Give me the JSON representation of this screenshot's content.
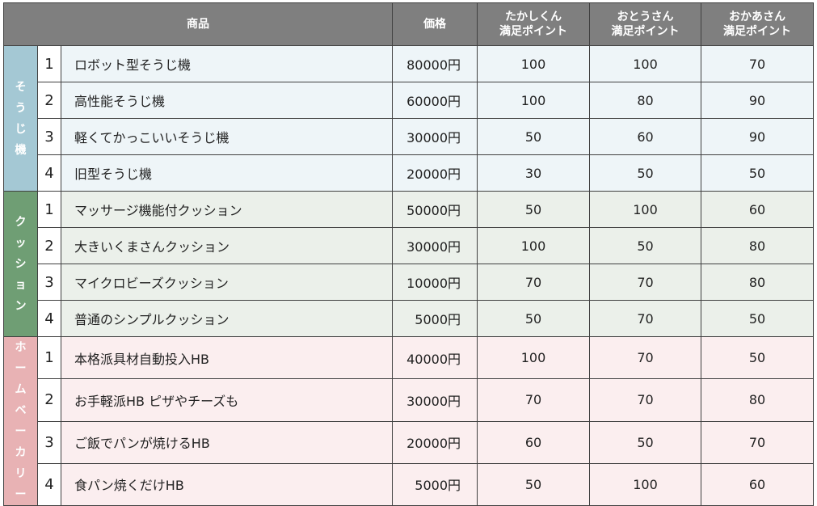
{
  "headers": {
    "product": "商品",
    "price": "価格",
    "takashi": [
      "たかしくん",
      "満足ポイント"
    ],
    "father": [
      "おとうさん",
      "満足ポイント"
    ],
    "mother": [
      "おかあさん",
      "満足ポイント"
    ]
  },
  "colors": {
    "header_bg": "#7f7f7f",
    "cat_soujiki": "#a4c8d4",
    "cat_cushion": "#6f9e74",
    "cat_homebakery": "#e8b2b4",
    "row_soujiki": "#eef5f8",
    "row_cushion": "#ebf0ea",
    "row_homebakery": "#fbeeef"
  },
  "groups": [
    {
      "category": "そうじ機",
      "rows": [
        {
          "no": "1",
          "name": "ロボット型そうじ機",
          "price": "80000円",
          "takashi": "100",
          "father": "100",
          "mother": "70"
        },
        {
          "no": "2",
          "name": "高性能そうじ機",
          "price": "60000円",
          "takashi": "100",
          "father": "80",
          "mother": "90"
        },
        {
          "no": "3",
          "name": "軽くてかっこいいそうじ機",
          "price": "30000円",
          "takashi": "50",
          "father": "60",
          "mother": "90"
        },
        {
          "no": "4",
          "name": "旧型そうじ機",
          "price": "20000円",
          "takashi": "30",
          "father": "50",
          "mother": "50"
        }
      ]
    },
    {
      "category": "クッション",
      "rows": [
        {
          "no": "1",
          "name": "マッサージ機能付クッション",
          "price": "50000円",
          "takashi": "50",
          "father": "100",
          "mother": "60"
        },
        {
          "no": "2",
          "name": "大きいくまさんクッション",
          "price": "30000円",
          "takashi": "100",
          "father": "50",
          "mother": "80"
        },
        {
          "no": "3",
          "name": "マイクロビーズクッション",
          "price": "10000円",
          "takashi": "70",
          "father": "70",
          "mother": "80"
        },
        {
          "no": "4",
          "name": "普通のシンプルクッション",
          "price": "5000円",
          "takashi": "50",
          "father": "70",
          "mother": "50"
        }
      ]
    },
    {
      "category": "ホームベーカリー",
      "rows": [
        {
          "no": "1",
          "name": "本格派具材自動投入HB",
          "price": "40000円",
          "takashi": "100",
          "father": "70",
          "mother": "50"
        },
        {
          "no": "2",
          "name": "お手軽派HB ピザやチーズも",
          "price": "30000円",
          "takashi": "70",
          "father": "70",
          "mother": "80"
        },
        {
          "no": "3",
          "name": "ご飯でパンが焼けるHB",
          "price": "20000円",
          "takashi": "60",
          "father": "50",
          "mother": "70"
        },
        {
          "no": "4",
          "name": "食パン焼くだけHB",
          "price": "5000円",
          "takashi": "50",
          "father": "100",
          "mother": "60"
        }
      ]
    }
  ]
}
